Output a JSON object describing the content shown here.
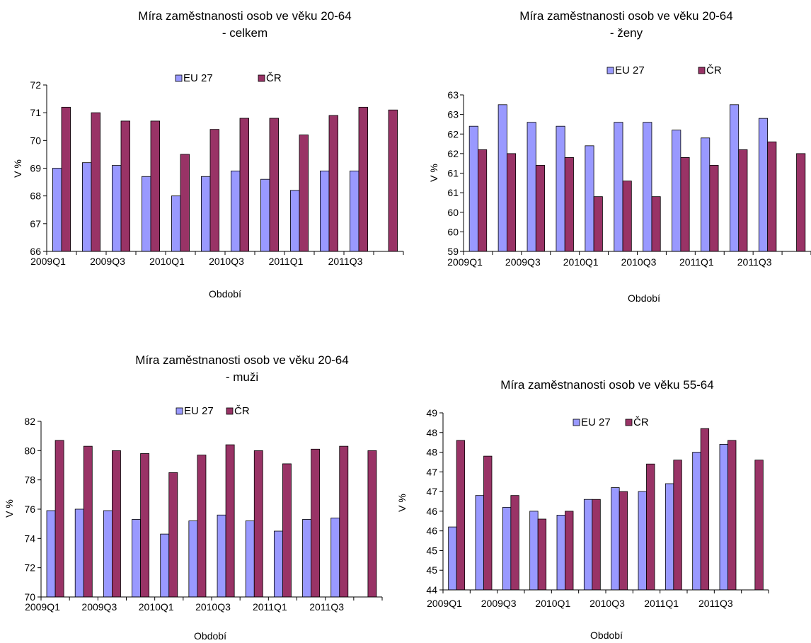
{
  "colors": {
    "eu": "#9999ff",
    "cr": "#993366",
    "axis": "#000000"
  },
  "chart_data": [
    {
      "type": "bar",
      "title_lines": [
        "Míra zaměstnanosti osob ve věku 20-64",
        "- celkem"
      ],
      "xlabel": "Období",
      "ylabel": "V %",
      "legend": [
        "EU 27",
        "ČR"
      ],
      "legend_position": "top",
      "categories": [
        "2009Q1",
        "2009Q2",
        "2009Q3",
        "2009Q4",
        "2010Q1",
        "2010Q2",
        "2010Q3",
        "2010Q4",
        "2011Q1",
        "2011Q2",
        "2011Q3",
        "2011Q4"
      ],
      "x_tick_labels": [
        "2009Q1",
        "",
        "2009Q3",
        "",
        "2010Q1",
        "",
        "2010Q3",
        "",
        "2011Q1",
        "",
        "2011Q3",
        ""
      ],
      "y_tick_labels": [
        "66",
        "67",
        "68",
        "69",
        "70",
        "71",
        "72"
      ],
      "ylim": [
        66,
        72
      ],
      "series": [
        {
          "name": "EU 27",
          "values": [
            69.0,
            69.2,
            69.1,
            68.7,
            68.0,
            68.7,
            68.9,
            68.6,
            68.2,
            68.9,
            68.9,
            null
          ]
        },
        {
          "name": "ČR",
          "values": [
            71.2,
            71.0,
            70.7,
            70.7,
            69.5,
            70.4,
            70.8,
            70.8,
            70.2,
            70.9,
            71.2,
            71.1
          ]
        }
      ]
    },
    {
      "type": "bar",
      "title_lines": [
        "Míra zaměstnanosti osob ve věku 20-64",
        "- ženy"
      ],
      "xlabel": "Období",
      "ylabel": "V %",
      "legend": [
        "EU 27",
        "ČR"
      ],
      "legend_position": "top",
      "categories": [
        "2009Q1",
        "2009Q2",
        "2009Q3",
        "2009Q4",
        "2010Q1",
        "2010Q2",
        "2010Q3",
        "2010Q4",
        "2011Q1",
        "2011Q2",
        "2011Q3",
        "2011Q4"
      ],
      "x_tick_labels": [
        "2009Q1",
        "",
        "2009Q3",
        "",
        "2010Q1",
        "",
        "2010Q3",
        "",
        "2011Q1",
        "",
        "2011Q3",
        ""
      ],
      "y_tick_labels": [
        "59",
        "60",
        "60",
        "61",
        "61",
        "62",
        "62",
        "63",
        "63"
      ],
      "ylim": [
        59.25,
        63.25
      ],
      "series": [
        {
          "name": "EU 27",
          "values": [
            62.45,
            63.0,
            62.55,
            62.45,
            61.95,
            62.55,
            62.55,
            62.35,
            62.15,
            63.0,
            62.65,
            null
          ]
        },
        {
          "name": "ČR",
          "values": [
            61.85,
            61.75,
            61.45,
            61.65,
            60.65,
            61.05,
            60.65,
            61.65,
            61.45,
            61.85,
            62.05,
            61.75
          ]
        }
      ]
    },
    {
      "type": "bar",
      "title_lines": [
        "Míra zaměstnanosti osob ve věku 20-64",
        "- muži"
      ],
      "xlabel": "Období",
      "ylabel": "V %",
      "legend": [
        "EU 27",
        "ČR"
      ],
      "legend_position": "top",
      "categories": [
        "2009Q1",
        "2009Q2",
        "2009Q3",
        "2009Q4",
        "2010Q1",
        "2010Q2",
        "2010Q3",
        "2010Q4",
        "2011Q1",
        "2011Q2",
        "2011Q3",
        "2011Q4"
      ],
      "x_tick_labels": [
        "2009Q1",
        "",
        "2009Q3",
        "",
        "2010Q1",
        "",
        "2010Q3",
        "",
        "2011Q1",
        "",
        "2011Q3",
        ""
      ],
      "y_tick_labels": [
        "70",
        "72",
        "74",
        "76",
        "78",
        "80",
        "82"
      ],
      "ylim": [
        70,
        82
      ],
      "series": [
        {
          "name": "EU 27",
          "values": [
            75.9,
            76.0,
            75.9,
            75.3,
            74.3,
            75.2,
            75.6,
            75.2,
            74.5,
            75.3,
            75.4,
            null
          ]
        },
        {
          "name": "ČR",
          "values": [
            80.7,
            80.3,
            80.0,
            79.8,
            78.5,
            79.7,
            80.4,
            80.0,
            79.1,
            80.1,
            80.3,
            80.0
          ]
        }
      ]
    },
    {
      "type": "bar",
      "title_lines": [
        "Míra zaměstnanosti osob ve věku 55-64"
      ],
      "xlabel": "Období",
      "ylabel": "V %",
      "legend": [
        "EU 27",
        "ČR"
      ],
      "legend_position": "top",
      "categories": [
        "2009Q1",
        "2009Q2",
        "2009Q3",
        "2009Q4",
        "2010Q1",
        "2010Q2",
        "2010Q3",
        "2010Q4",
        "2011Q1",
        "2011Q2",
        "2011Q3",
        "2011Q4"
      ],
      "x_tick_labels": [
        "2009Q1",
        "",
        "2009Q3",
        "",
        "2010Q1",
        "",
        "2010Q3",
        "",
        "2011Q1",
        "",
        "2011Q3",
        ""
      ],
      "y_tick_labels": [
        "44",
        "45",
        "45",
        "46",
        "46",
        "47",
        "47",
        "48",
        "48",
        "49"
      ],
      "ylim": [
        44.25,
        48.75
      ],
      "series": [
        {
          "name": "EU 27",
          "values": [
            45.85,
            46.65,
            46.35,
            46.25,
            46.15,
            46.55,
            46.85,
            46.75,
            46.95,
            47.75,
            47.95,
            null
          ]
        },
        {
          "name": "ČR",
          "values": [
            48.05,
            47.65,
            46.65,
            46.05,
            46.25,
            46.55,
            46.75,
            47.45,
            47.55,
            48.35,
            48.05,
            47.55
          ]
        }
      ]
    }
  ]
}
